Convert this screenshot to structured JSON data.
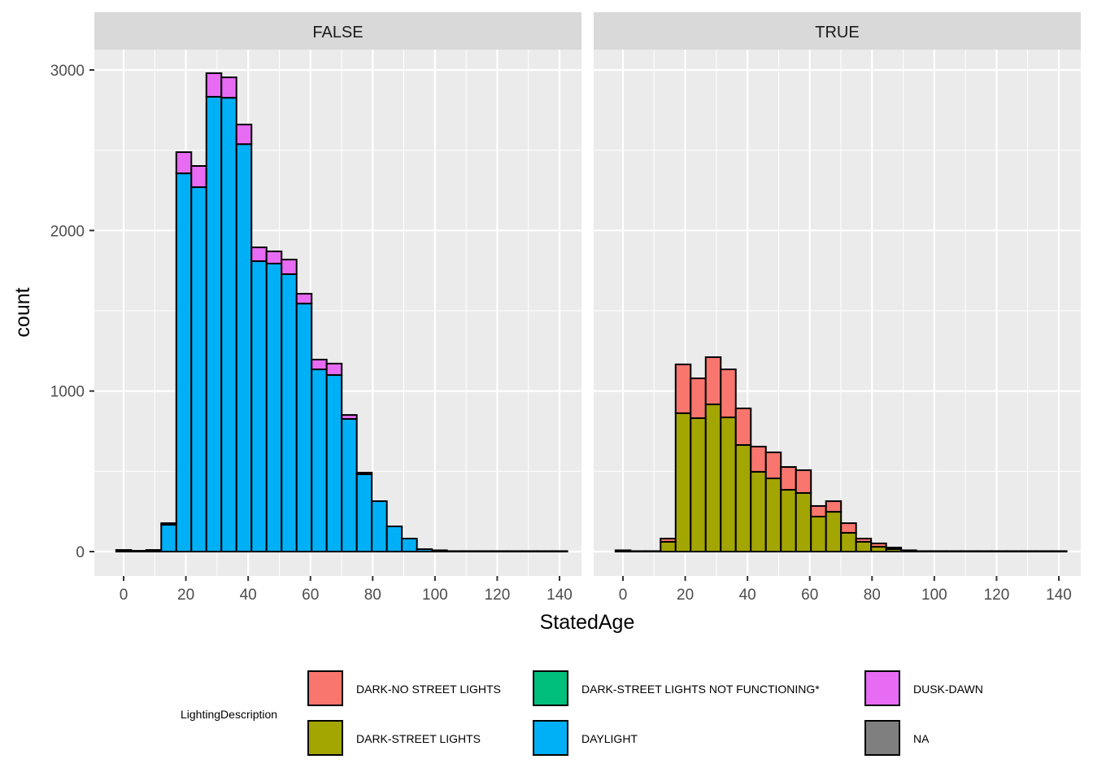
{
  "chart_data": {
    "type": "bar",
    "subtype": "stacked-histogram-faceted",
    "xlabel": "StatedAge",
    "ylabel": "count",
    "xlim": [
      -10,
      140
    ],
    "ylim": [
      -150,
      3150
    ],
    "x_ticks": [
      0,
      20,
      40,
      60,
      80,
      100,
      120,
      140
    ],
    "y_ticks": [
      0,
      1000,
      2000,
      3000
    ],
    "x_tick_labels": [
      "0",
      "20",
      "40",
      "60",
      "80",
      "100",
      "120",
      "140"
    ],
    "y_tick_labels": [
      "0",
      "1000",
      "2000",
      "3000"
    ],
    "grid": true,
    "bin_start": -2.4,
    "bin_width": 4.83,
    "legend": {
      "title": "LightingDescription",
      "position": "bottom",
      "entries": [
        {
          "label": "DARK-NO STREET LIGHTS",
          "color": "#F8766D"
        },
        {
          "label": "DARK-STREET LIGHTS",
          "color": "#A3A500"
        },
        {
          "label": "DARK-STREET LIGHTS NOT FUNCTIONING*",
          "color": "#00BF7D"
        },
        {
          "label": "DAYLIGHT",
          "color": "#00B0F6"
        },
        {
          "label": "DUSK-DAWN",
          "color": "#E76BF3"
        },
        {
          "label": "NA",
          "color": "#7F7F7F"
        }
      ]
    },
    "facets": [
      {
        "label": "FALSE",
        "series": [
          {
            "name": "DAYLIGHT",
            "color": "#00B0F6",
            "values": [
              10,
              5,
              10,
              167,
              2356,
              2270,
              2833,
              2827,
              2538,
              1809,
              1794,
              1728,
              1545,
              1135,
              1100,
              826,
              482,
              314,
              157,
              81,
              15,
              8,
              3,
              3,
              3,
              3,
              3,
              3,
              3,
              3
            ]
          },
          {
            "name": "DUSK-DAWN",
            "color": "#E76BF3",
            "values": [
              0,
              0,
              0,
              10,
              132,
              132,
              147,
              127,
              122,
              86,
              76,
              91,
              61,
              61,
              71,
              25,
              10,
              0,
              0,
              0,
              0,
              0,
              0,
              0,
              0,
              0,
              0,
              0,
              0,
              0
            ]
          }
        ]
      },
      {
        "label": "TRUE",
        "series": [
          {
            "name": "DARK-STREET LIGHTS",
            "color": "#A3A500",
            "values": [
              8,
              3,
              3,
              61,
              862,
              831,
              917,
              836,
              664,
              497,
              456,
              385,
              365,
              218,
              248,
              117,
              61,
              30,
              15,
              8,
              3,
              3,
              3,
              3,
              3,
              3,
              3,
              3,
              3,
              3
            ]
          },
          {
            "name": "DARK-NO STREET LIGHTS",
            "color": "#F8766D",
            "values": [
              0,
              0,
              0,
              20,
              304,
              248,
              294,
              299,
              228,
              157,
              162,
              142,
              142,
              66,
              66,
              60,
              20,
              21,
              10,
              0,
              0,
              0,
              0,
              0,
              0,
              0,
              0,
              0,
              0,
              0
            ]
          }
        ]
      }
    ]
  }
}
